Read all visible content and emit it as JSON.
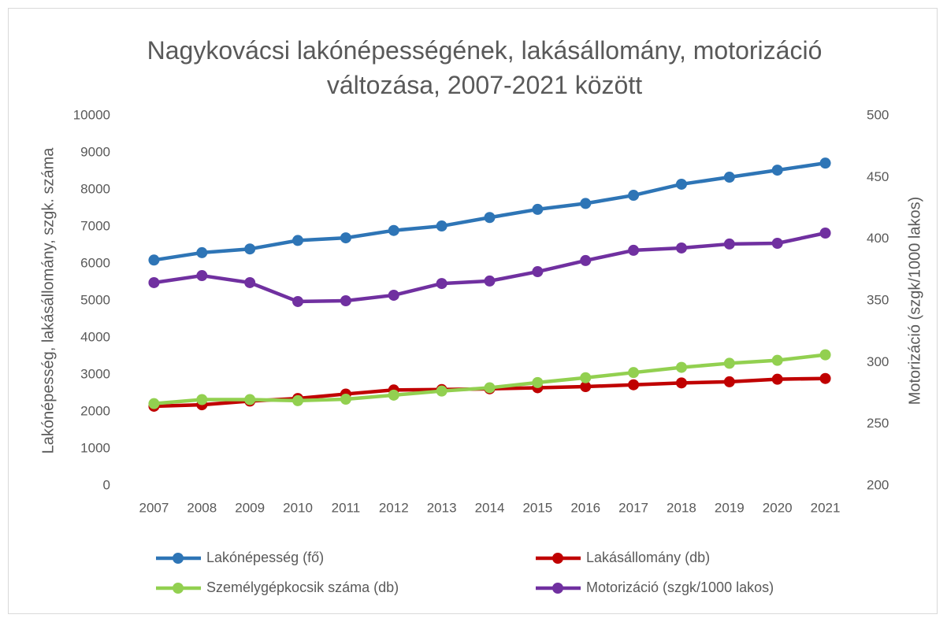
{
  "chart_data": {
    "type": "line",
    "title": "Nagykovácsi lakónépességének, lakásállomány, motorizáció változása, 2007-2021 között",
    "ylabel": "Lakónépesség, lakásállomány, szgk. száma",
    "y2label": "Motorizáció (szgk/1000 lakos)",
    "categories": [
      "2007",
      "2008",
      "2009",
      "2010",
      "2011",
      "2012",
      "2013",
      "2014",
      "2015",
      "2016",
      "2017",
      "2018",
      "2019",
      "2020",
      "2021"
    ],
    "series": [
      {
        "name": "Lakónépesség (fő)",
        "color": "#2e75b6",
        "values": [
          6100,
          6300,
          6400,
          6630,
          6700,
          6900,
          7020,
          7250,
          7470,
          7630,
          7850,
          8150,
          8340,
          8530,
          8720
        ]
      },
      {
        "name": "Lakásállomány (db)",
        "color": "#c00000",
        "values": [
          2150,
          2190,
          2290,
          2360,
          2480,
          2590,
          2600,
          2620,
          2650,
          2680,
          2730,
          2780,
          2810,
          2880,
          2900
        ]
      },
      {
        "name": "Személygépkocsik száma (db)",
        "color": "#92d050",
        "values": [
          2220,
          2330,
          2330,
          2300,
          2340,
          2450,
          2560,
          2650,
          2790,
          2920,
          3060,
          3200,
          3310,
          3390,
          3540
        ]
      },
      {
        "name": "Motorizáció (szgk/1000 lakos)",
        "color": "#7030a0",
        "axis": "y2",
        "values": [
          364.7,
          370.4,
          364.7,
          349.4,
          350,
          354.5,
          364,
          366,
          373.6,
          382.6,
          390.9,
          392.8,
          396,
          396.6,
          404.9
        ]
      }
    ],
    "ylim": [
      0,
      10000
    ],
    "yticks": [
      0,
      1000,
      2000,
      3000,
      4000,
      5000,
      6000,
      7000,
      8000,
      9000,
      10000
    ],
    "y2lim": [
      200,
      500
    ],
    "y2ticks": [
      200,
      250,
      300,
      350,
      400,
      450,
      500
    ],
    "grid": false,
    "legend": "bottom"
  }
}
